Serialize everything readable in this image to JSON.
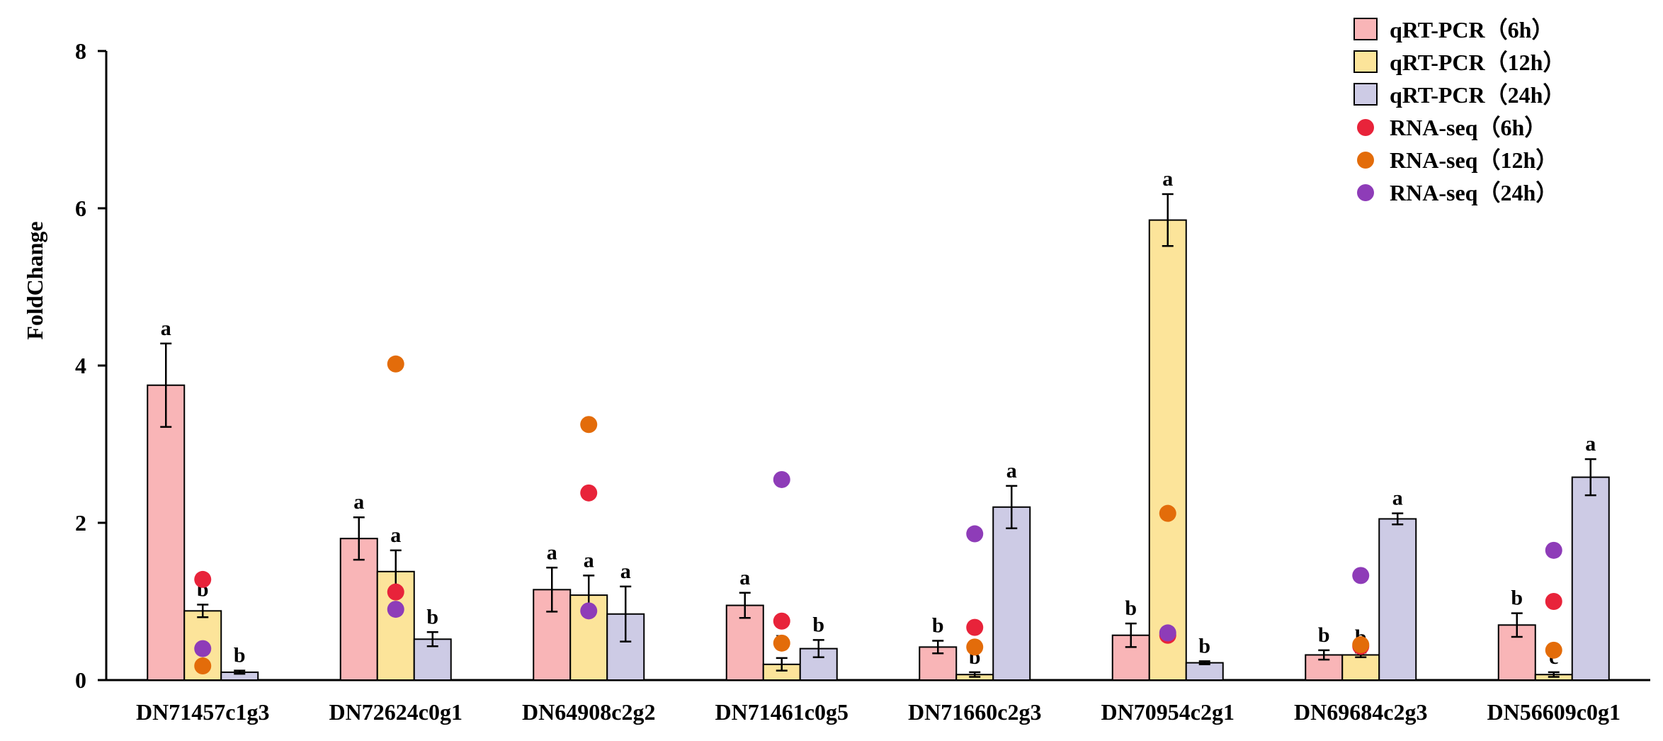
{
  "chart_data": {
    "type": "bar",
    "title": "",
    "xlabel": "",
    "ylabel": "FoldChange",
    "ylim": [
      0,
      8
    ],
    "yticks": [
      0,
      2,
      4,
      6,
      8
    ],
    "categories": [
      "DN71457c1g3",
      "DN72624c0g1",
      "DN64908c2g2",
      "DN71461c0g5",
      "DN71660c2g3",
      "DN70954c2g1",
      "DN69684c2g3",
      "DN56609c0g1"
    ],
    "series": [
      {
        "name": "qRT-PCR（6h）",
        "kind": "bar",
        "color": "#F9B5B7",
        "values": [
          3.75,
          1.8,
          1.15,
          0.95,
          0.42,
          0.57,
          0.32,
          0.7
        ],
        "errors": [
          0.53,
          0.27,
          0.28,
          0.16,
          0.08,
          0.15,
          0.06,
          0.15
        ],
        "labels": [
          "a",
          "a",
          "a",
          "a",
          "b",
          "b",
          "b",
          "b"
        ]
      },
      {
        "name": "qRT-PCR（12h）",
        "kind": "bar",
        "color": "#FCE49A",
        "values": [
          0.88,
          1.38,
          1.08,
          0.2,
          0.07,
          5.85,
          0.32,
          0.07
        ],
        "errors": [
          0.08,
          0.27,
          0.25,
          0.08,
          0.03,
          0.33,
          0.03,
          0.03
        ],
        "labels": [
          "b",
          "a",
          "a",
          "b",
          "b",
          "a",
          "b",
          "c"
        ]
      },
      {
        "name": "qRT-PCR（24h）",
        "kind": "bar",
        "color": "#CDCBE5",
        "values": [
          0.1,
          0.52,
          0.84,
          0.4,
          2.2,
          0.22,
          2.05,
          2.58
        ],
        "errors": [
          0.02,
          0.09,
          0.35,
          0.11,
          0.27,
          0.02,
          0.07,
          0.23
        ],
        "labels": [
          "b",
          "b",
          "a",
          "b",
          "a",
          "b",
          "a",
          "a"
        ]
      },
      {
        "name": "RNA-seq（6h）",
        "kind": "point",
        "color": "#E8233A",
        "values": [
          1.28,
          1.12,
          2.38,
          0.75,
          0.67,
          0.57,
          0.43,
          1.0
        ]
      },
      {
        "name": "RNA-seq（12h）",
        "kind": "point",
        "color": "#E36C0A",
        "values": [
          0.18,
          4.02,
          3.25,
          0.47,
          0.42,
          2.12,
          0.45,
          0.38
        ]
      },
      {
        "name": "RNA-seq（24h）",
        "kind": "point",
        "color": "#8E3CB8",
        "values": [
          0.4,
          0.9,
          0.88,
          2.55,
          1.86,
          0.6,
          1.33,
          1.65
        ]
      }
    ],
    "grid": false,
    "legend_position": "top-right"
  }
}
